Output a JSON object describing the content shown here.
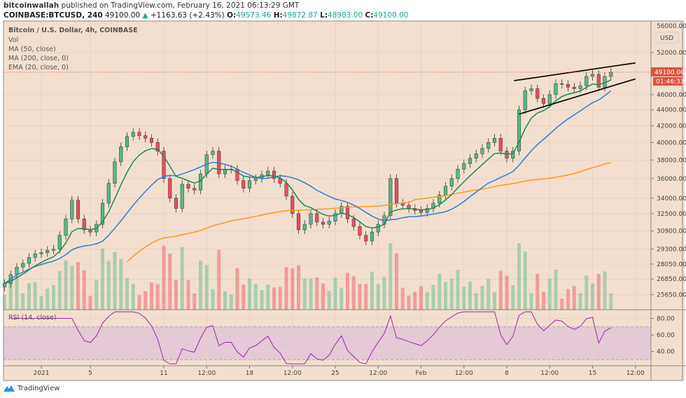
{
  "header": {
    "author": "bitcoinwallah",
    "published": "published on TradingView.com, February 16, 2021 06:13:29 GMT",
    "symbol": "COINBASE:BTCUSD, 240",
    "last": "49100.00",
    "arrow": "▲",
    "change": "+1163.63 (+2.43%)",
    "o_label": "O:",
    "o": "49573.46",
    "h_label": "H:",
    "h": "49872.87",
    "l_label": "L:",
    "l": "48983.00",
    "c_label": "C:",
    "c": "49100.00"
  },
  "legend": {
    "title": "Bitcoin / U.S. Dollar, 4h, COINBASE",
    "vol": "Vol",
    "ma50": "MA (50, close)",
    "ma200": "MA (200, close, 0)",
    "ema20": "EMA (20, close, 0)",
    "rsi": "RSI (14, close)"
  },
  "logo": "TradingView",
  "colors": {
    "bg": "#f2dfcf",
    "up": "#53b987",
    "down": "#eb4d5c",
    "ema20": "#1e8a57",
    "ma50": "#2d7fd8",
    "ma200": "#ff9a1a",
    "rsi": "#9c27b0",
    "rsiband": "#e3c8d6",
    "price_tag": "#e0523f"
  },
  "chart_data": {
    "type": "candlestick",
    "scale": "log",
    "currency": "USD",
    "start": "2020-12-29 00:00",
    "interval": "12h",
    "closes": [
      26500,
      27200,
      27800,
      28100,
      28600,
      28900,
      29000,
      29200,
      29300,
      30500,
      32000,
      33800,
      32000,
      31000,
      30800,
      31500,
      33500,
      35500,
      37800,
      39500,
      40700,
      41200,
      40800,
      40500,
      40000,
      39000,
      36000,
      34000,
      33000,
      35400,
      35000,
      34800,
      36500,
      38600,
      39000,
      36500,
      37000,
      37000,
      35800,
      35000,
      35800,
      36000,
      36400,
      36800,
      36000,
      35500,
      34200,
      32500,
      31000,
      31500,
      32500,
      31700,
      31500,
      31800,
      32500,
      33200,
      32000,
      31300,
      30500,
      30000,
      30800,
      31500,
      32300,
      36000,
      33500,
      33300,
      33000,
      32800,
      32600,
      33000,
      33500,
      34300,
      35200,
      36000,
      37000,
      37600,
      38200,
      38700,
      39300,
      40000,
      40500,
      39000,
      38200,
      39000,
      44000,
      46500,
      46800,
      45500,
      44800,
      46000,
      47500,
      47400,
      47000,
      46800,
      47200,
      48500,
      48800,
      47000,
      48500,
      49100
    ],
    "price_ticks": [
      "52000.00",
      "46000.00",
      "44000.00",
      "42000.00",
      "40000.00",
      "38000.00",
      "36000.00",
      "34000.00",
      "32500.00",
      "30900.00",
      "29300.00",
      "28050.00",
      "26850.00",
      "25650.00"
    ],
    "top_tick": "56000.00",
    "last_price": "49100.00",
    "countdown": "01:46:33",
    "rsi_ticks": [
      "80.00",
      "60.00",
      "40.00"
    ],
    "rsi_band": [
      30,
      70
    ],
    "time_ticks": [
      {
        "label": "2021",
        "t": "2021-01-01 00:00"
      },
      {
        "label": "5",
        "t": "2021-01-05 00:00"
      },
      {
        "label": "11",
        "t": "2021-01-11 00:00"
      },
      {
        "label": "12:00",
        "t": "2021-01-14 12:00"
      },
      {
        "label": "18",
        "t": "2021-01-18 00:00"
      },
      {
        "label": "12:00",
        "t": "2021-01-21 12:00"
      },
      {
        "label": "25",
        "t": "2021-01-25 00:00"
      },
      {
        "label": "12:00",
        "t": "2021-01-28 12:00"
      },
      {
        "label": "Feb",
        "t": "2021-02-01 00:00"
      },
      {
        "label": "12:00",
        "t": "2021-02-04 12:00"
      },
      {
        "label": "8",
        "t": "2021-02-08 00:00"
      },
      {
        "label": "12:00",
        "t": "2021-02-11 12:00"
      },
      {
        "label": "15",
        "t": "2021-02-15 00:00"
      },
      {
        "label": "12:00",
        "t": "2021-02-18 12:00"
      }
    ],
    "trendlines": [
      {
        "name": "wedge-upper",
        "from": [
          "2021-02-08 14:00",
          47900
        ],
        "to": [
          "2021-02-18 12:00",
          50450
        ]
      },
      {
        "name": "wedge-lower",
        "from": [
          "2021-02-09 00:00",
          43450
        ],
        "to": [
          "2021-02-18 12:00",
          48150
        ]
      }
    ]
  }
}
